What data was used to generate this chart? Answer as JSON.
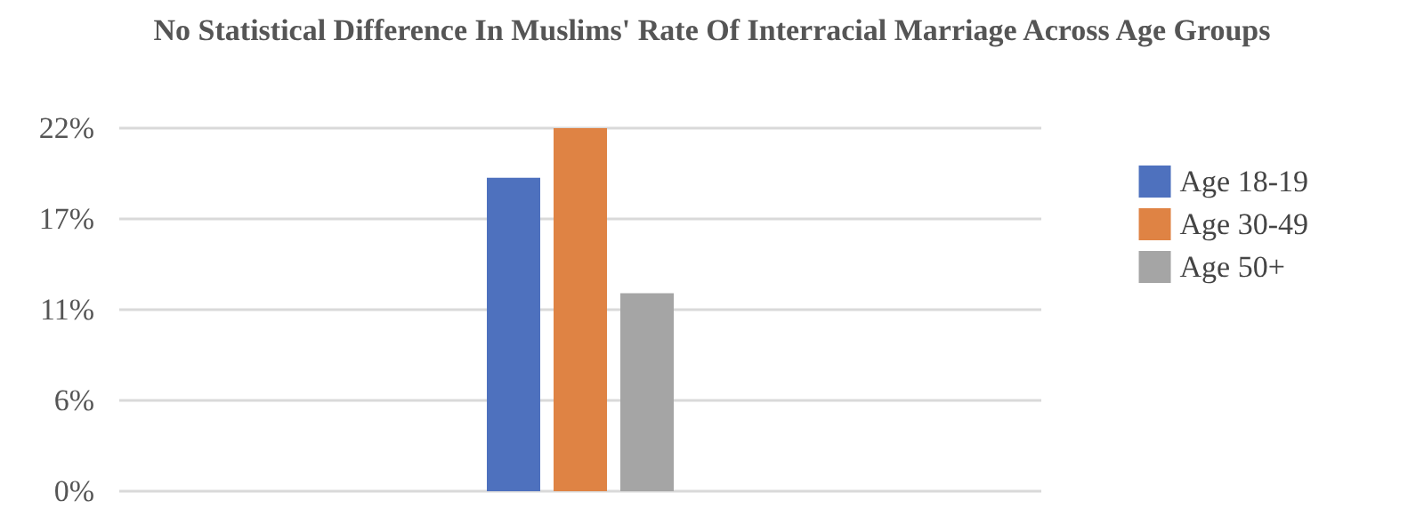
{
  "chart_data": {
    "type": "bar",
    "title": "No Statistical Difference In Muslims' Rate Of Interracial Marriage Across Age Groups",
    "categories": [
      null
    ],
    "series": [
      {
        "name": "Age 18-19",
        "color": "#4e71be",
        "values": [
          19
        ]
      },
      {
        "name": "Age 30-49",
        "color": "#df8344",
        "values": [
          22
        ]
      },
      {
        "name": "Age 50+",
        "color": "#a5a5a5",
        "values": [
          12
        ]
      }
    ],
    "ylim": [
      0,
      22
    ],
    "yticks": [
      {
        "value": 0,
        "label": "0%"
      },
      {
        "value": 5.5,
        "label": "6%"
      },
      {
        "value": 11,
        "label": "11%"
      },
      {
        "value": 16.5,
        "label": "17%"
      },
      {
        "value": 22,
        "label": "22%"
      }
    ],
    "grid": "y",
    "legend": "right"
  }
}
